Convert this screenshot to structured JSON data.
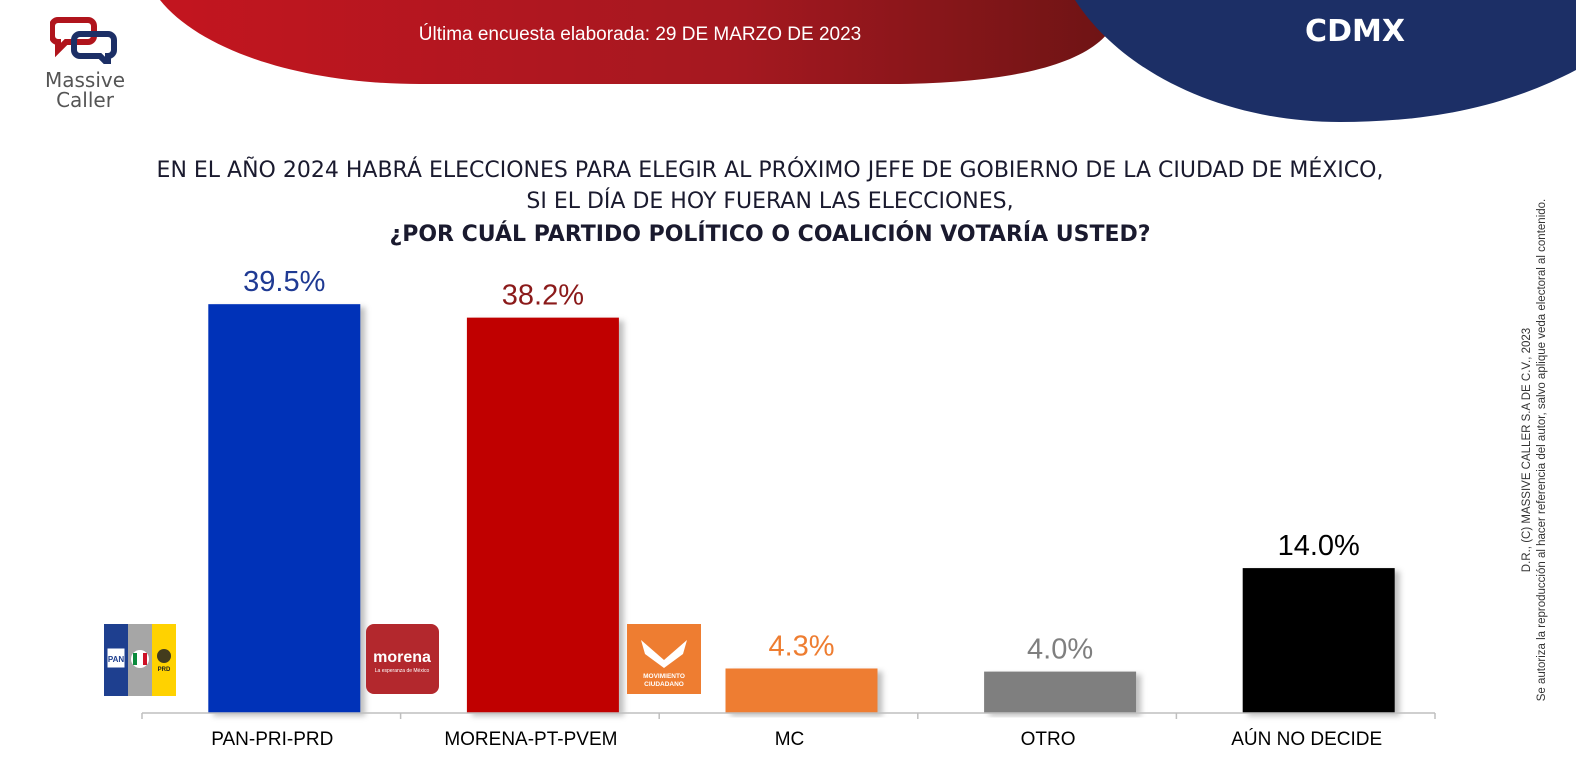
{
  "header": {
    "logo_line1": "Massive",
    "logo_line2": "Caller",
    "survey_date": "Última encuesta elaborada: 29 DE MARZO DE 2023",
    "region": "CDMX",
    "colors": {
      "red": "#b0141c",
      "navy": "#1c2f66"
    }
  },
  "question": {
    "line1": "EN EL AÑO 2024 HABRÁ ELECCIONES PARA ELEGIR AL PRÓXIMO JEFE DE GOBIERNO DE  LA CIUDAD DE MÉXICO,",
    "line2": "SI EL DÍA DE HOY FUERAN LAS ELECCIONES,",
    "line3": "¿POR CUÁL PARTIDO POLÍTICO O COALICIÓN VOTARÍA USTED?"
  },
  "party_logos": [
    {
      "icon": "pan-pri-prd-logo-icon",
      "texts": [
        "PAN",
        "PRD"
      ]
    },
    {
      "icon": "morena-logo-icon",
      "texts": [
        "morena",
        "La esperanza de México"
      ]
    },
    {
      "icon": "movimiento-ciudadano-logo-icon",
      "texts": [
        "MOVIMIENTO",
        "CIUDADANO"
      ]
    }
  ],
  "chart_data": {
    "type": "bar",
    "categories": [
      "PAN-PRI-PRD",
      "MORENA-PT-PVEM",
      "MC",
      "OTRO",
      "AÚN NO DECIDE"
    ],
    "values": [
      39.5,
      38.2,
      4.3,
      4.0,
      14.0
    ],
    "value_labels": [
      "39.5%",
      "38.2%",
      "4.3%",
      "4.0%",
      "14.0%"
    ],
    "bar_colors": [
      "#0033b8",
      "#c00000",
      "#ee7d31",
      "#7f7f7f",
      "#000000"
    ],
    "label_colors": [
      "#1f3a93",
      "#8b1a1a",
      "#ee7d31",
      "#7f7f7f",
      "#000000"
    ],
    "ylim": [
      0,
      42
    ],
    "grid": false,
    "legend": "none"
  },
  "footer": {
    "copyright_line1": "D.R., (C) MASSIVE CALLER S.A DE C.V., 2023",
    "copyright_line2": "Se autoriza la reproducción al hacer referencia del autor, salvo aplique veda electoral al contenido."
  }
}
